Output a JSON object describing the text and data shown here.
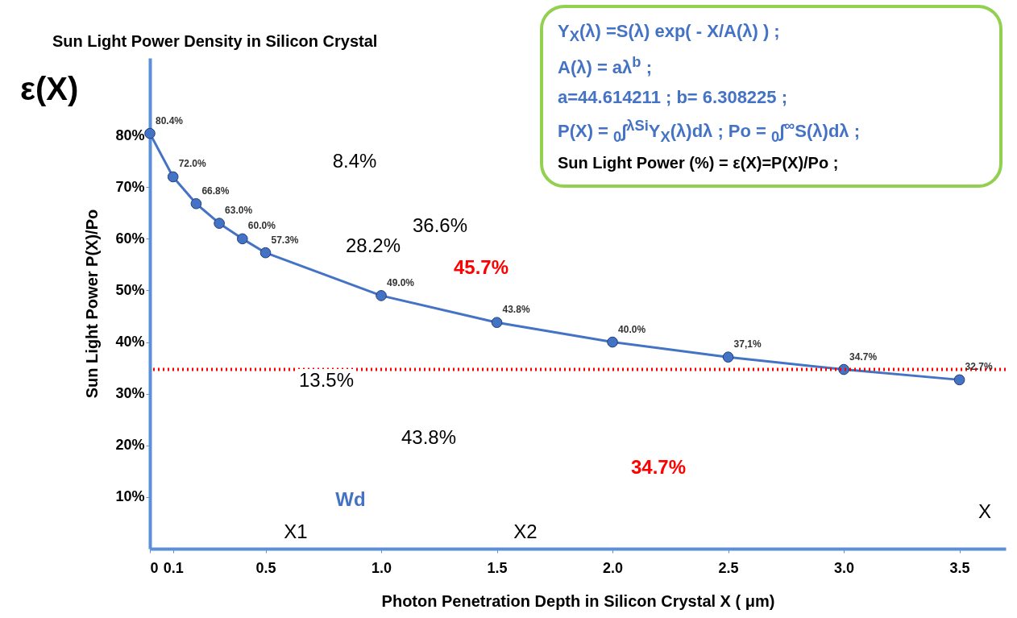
{
  "chart_data": {
    "type": "line",
    "title": "Sun Light Power Density in Silicon Crystal",
    "xlabel": "Photon Penetration Depth in Silicon Crystal  X ( μm)",
    "ylabel": "Sun Light Power P(X)/Po",
    "x": [
      0,
      0.1,
      0.2,
      0.3,
      0.4,
      0.5,
      1.0,
      1.5,
      2.0,
      2.5,
      3.0,
      3.5
    ],
    "series": [
      {
        "color": "#4472c4",
        "values": [
          80.4,
          72.0,
          66.8,
          63.0,
          60.0,
          57.3,
          49.0,
          43.8,
          40.0,
          37.1,
          34.7,
          32.7
        ],
        "value_labels": [
          "80.4%",
          "72.0%",
          "66.8%",
          "63.0%",
          "60.0%",
          "57.3%",
          "49.0%",
          "43.8%",
          "40.0%",
          "37,1%",
          "34.7%",
          "32.7%"
        ]
      }
    ],
    "xlim": [
      0,
      3.7
    ],
    "ylim": [
      0,
      95
    ],
    "xticks": [
      {
        "value": 0,
        "label": "0"
      },
      0.1,
      0.5,
      {
        "value": 1,
        "label": "1.0"
      },
      1.5,
      {
        "value": 2,
        "label": "2.0"
      },
      2.5,
      {
        "value": 3,
        "label": "3.0"
      },
      3.5
    ],
    "yticks": [
      {
        "value": 10,
        "label": "10%"
      },
      {
        "value": 20,
        "label": "20%"
      },
      {
        "value": 30,
        "label": "30%"
      },
      {
        "value": 40,
        "label": "40%"
      },
      {
        "value": 50,
        "label": "50%"
      },
      {
        "value": 60,
        "label": "60%"
      },
      {
        "value": 70,
        "label": "70%"
      },
      {
        "value": 80,
        "label": "80%"
      }
    ],
    "ref_lines": [
      {
        "axis": "y",
        "value": 34.7,
        "color": "#ff0000",
        "line_style": "dotted"
      }
    ],
    "marker": "circle",
    "grid": false,
    "annotations": [
      "ε(X)",
      "Y$_{X}$(λ) =S(λ) exp( - X/A(λ) ) ;",
      "A(λ) = aλ$^{b}$ ;",
      "a=44.614211  ; b= 6.308225 ;",
      "P(X) = $_{0}$∫$^{λSi}$Y$_{X}$(λ)dλ ; Po = $_{0}$∫$^{∞}$S(λ)dλ ;",
      "Sun Light Power (%) = ε(X)=P(X)/Po ;",
      "8.4%",
      "28.2%",
      "36.6%",
      "45.7%",
      "13.5%",
      "43.8%",
      "34.7%",
      "Wd",
      "X1",
      "X2",
      "X"
    ]
  }
}
